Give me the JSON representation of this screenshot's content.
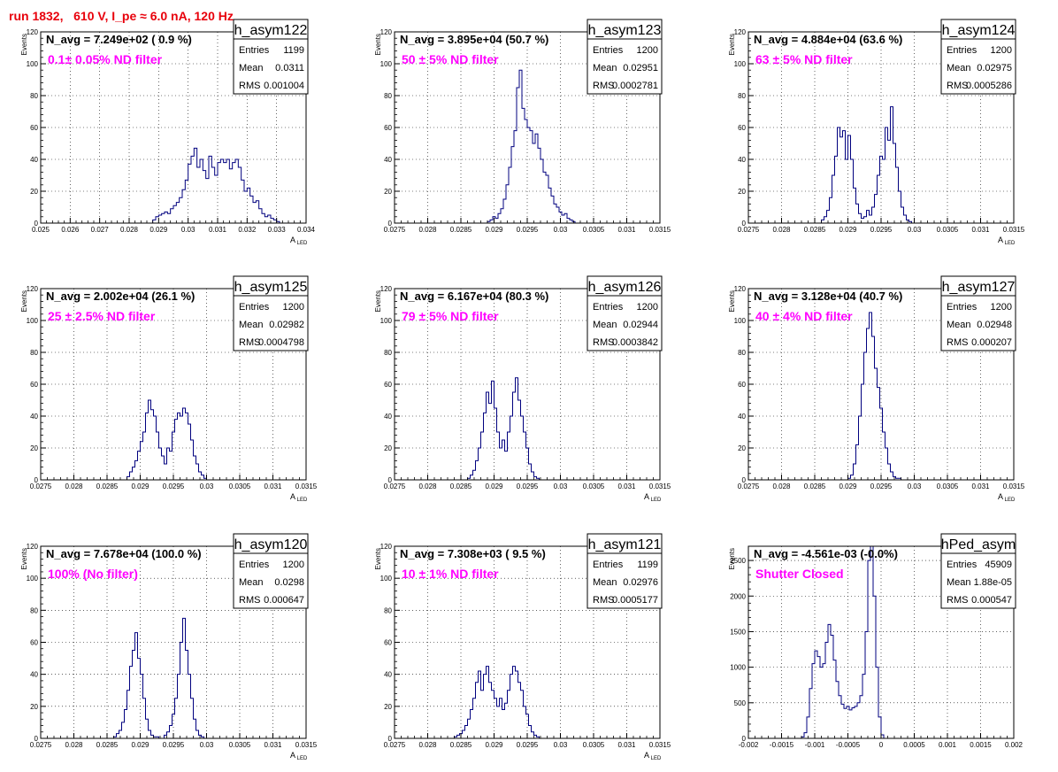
{
  "title": "run 1832,   610 V, I_pe ≈ 6.0 nA, 120 Hz",
  "stat_labels": {
    "entries": "Entries",
    "mean": "Mean",
    "rms": "RMS"
  },
  "y_label": "Events",
  "x_label_main": "A",
  "x_label_sub": "LED",
  "colors": {
    "histogram": "#00007f",
    "annotation": "#ff00ff",
    "title": "#e8000b"
  },
  "chart_data": [
    {
      "type": "bar",
      "name": "h_asym122",
      "nlabel": "N_avg = 7.249e+02 ( 0.9 %)",
      "filter_label": "0.1± 0.05% ND filter",
      "entries": "1199",
      "mean": "0.0311",
      "rms": "0.001004",
      "xlim": [
        0.025,
        0.034
      ],
      "ylim": [
        0,
        120
      ],
      "x_ticks": [
        0.025,
        0.026,
        0.027,
        0.028,
        0.029,
        0.03,
        0.031,
        0.032,
        0.033,
        0.034
      ],
      "x_tick_labels": [
        "0.025",
        "0.026",
        "0.027",
        "0.028",
        "0.029",
        "0.03",
        "0.031",
        "0.032",
        "0.033",
        "0.034"
      ],
      "y_ticks": [
        0,
        20,
        40,
        60,
        80,
        100,
        120
      ],
      "y_tick_labels": [
        "0",
        "20",
        "40",
        "60",
        "80",
        "100",
        "120"
      ],
      "x_axis_label": true,
      "bins": {
        "start": 0.0288,
        "width": 0.0001,
        "values": [
          2,
          4,
          5,
          6,
          7,
          6,
          9,
          11,
          13,
          16,
          21,
          27,
          37,
          42,
          47,
          35,
          40,
          33,
          28,
          42,
          35,
          30,
          38,
          40,
          38,
          40,
          34,
          38,
          40,
          35,
          27,
          20,
          22,
          17,
          13,
          14,
          9,
          6,
          4,
          5,
          3,
          2,
          1
        ]
      }
    },
    {
      "type": "bar",
      "name": "h_asym123",
      "nlabel": "N_avg = 3.895e+04 (50.7 %)",
      "filter_label": "50 ± 5% ND filter",
      "entries": "1200",
      "mean": "0.02951",
      "rms": "0.0002781",
      "xlim": [
        0.0275,
        0.0315
      ],
      "ylim": [
        0,
        120
      ],
      "x_ticks": [
        0.0275,
        0.028,
        0.0285,
        0.029,
        0.0295,
        0.03,
        0.0305,
        0.031,
        0.0315
      ],
      "x_tick_labels": [
        "0.0275",
        "0.028",
        "0.0285",
        "0.029",
        "0.0295",
        "0.03",
        "0.0305",
        "0.031",
        "0.0315"
      ],
      "y_ticks": [
        0,
        20,
        40,
        60,
        80,
        100,
        120
      ],
      "y_tick_labels": [
        "0",
        "20",
        "40",
        "60",
        "80",
        "100",
        "120"
      ],
      "x_axis_label": false,
      "bins": {
        "start": 0.0289,
        "width": 4e-05,
        "values": [
          1,
          2,
          4,
          3,
          6,
          9,
          15,
          24,
          35,
          48,
          58,
          85,
          96,
          72,
          65,
          60,
          58,
          50,
          56,
          47,
          40,
          32,
          30,
          22,
          17,
          12,
          10,
          7,
          5,
          6,
          3,
          2,
          1
        ]
      }
    },
    {
      "type": "bar",
      "name": "h_asym124",
      "nlabel": "N_avg = 4.884e+04 (63.6 %)",
      "filter_label": "63 ± 5% ND filter",
      "entries": "1200",
      "mean": "0.02975",
      "rms": "0.0005286",
      "xlim": [
        0.0275,
        0.0315
      ],
      "ylim": [
        0,
        120
      ],
      "x_ticks": [
        0.0275,
        0.028,
        0.0285,
        0.029,
        0.0295,
        0.03,
        0.0305,
        0.031,
        0.0315
      ],
      "x_tick_labels": [
        "0.0275",
        "0.028",
        "0.0285",
        "0.029",
        "0.0295",
        "0.03",
        "0.0305",
        "0.031",
        "0.0315"
      ],
      "y_ticks": [
        0,
        20,
        40,
        60,
        80,
        100,
        120
      ],
      "y_tick_labels": [
        "0",
        "20",
        "40",
        "60",
        "80",
        "100",
        "120"
      ],
      "x_axis_label": true,
      "bins": {
        "start": 0.0286,
        "width": 4e-05,
        "values": [
          2,
          4,
          8,
          16,
          30,
          42,
          60,
          54,
          58,
          40,
          55,
          40,
          22,
          12,
          6,
          3,
          4,
          8,
          5,
          10,
          18,
          30,
          42,
          40,
          60,
          52,
          73,
          50,
          35,
          20,
          10,
          5,
          2,
          1
        ]
      }
    },
    {
      "type": "bar",
      "name": "h_asym125",
      "nlabel": "N_avg = 2.002e+04 (26.1 %)",
      "filter_label": "25 ± 2.5% ND filter",
      "entries": "1200",
      "mean": "0.02982",
      "rms": "0.0004798",
      "xlim": [
        0.0275,
        0.0315
      ],
      "ylim": [
        0,
        120
      ],
      "x_ticks": [
        0.0275,
        0.028,
        0.0285,
        0.029,
        0.0295,
        0.03,
        0.0305,
        0.031,
        0.0315
      ],
      "x_tick_labels": [
        "0.0275",
        "0.028",
        "0.0285",
        "0.029",
        "0.0295",
        "0.03",
        "0.0305",
        "0.031",
        "0.0315"
      ],
      "y_ticks": [
        0,
        20,
        40,
        60,
        80,
        100,
        120
      ],
      "y_tick_labels": [
        "0",
        "20",
        "40",
        "60",
        "80",
        "100",
        "120"
      ],
      "x_axis_label": true,
      "bins": {
        "start": 0.0288,
        "width": 4e-05,
        "values": [
          2,
          5,
          8,
          12,
          18,
          24,
          30,
          42,
          50,
          44,
          40,
          30,
          20,
          15,
          10,
          20,
          18,
          30,
          38,
          42,
          40,
          45,
          42,
          35,
          25,
          15,
          10,
          5,
          3,
          1
        ]
      }
    },
    {
      "type": "bar",
      "name": "h_asym126",
      "nlabel": "N_avg = 6.167e+04 (80.3 %)",
      "filter_label": "79 ± 5% ND filter",
      "entries": "1200",
      "mean": "0.02944",
      "rms": "0.0003842",
      "xlim": [
        0.0275,
        0.0315
      ],
      "ylim": [
        0,
        120
      ],
      "x_ticks": [
        0.0275,
        0.028,
        0.0285,
        0.029,
        0.0295,
        0.03,
        0.0305,
        0.031,
        0.0315
      ],
      "x_tick_labels": [
        "0.0275",
        "0.028",
        "0.0285",
        "0.029",
        "0.0295",
        "0.03",
        "0.0305",
        "0.031",
        "0.0315"
      ],
      "y_ticks": [
        0,
        20,
        40,
        60,
        80,
        100,
        120
      ],
      "y_tick_labels": [
        "0",
        "20",
        "40",
        "60",
        "80",
        "100",
        "120"
      ],
      "x_axis_label": true,
      "bins": {
        "start": 0.0286,
        "width": 4e-05,
        "values": [
          1,
          3,
          6,
          12,
          20,
          30,
          42,
          55,
          48,
          62,
          45,
          30,
          20,
          25,
          18,
          30,
          40,
          55,
          64,
          50,
          40,
          30,
          20,
          10,
          5,
          2,
          1
        ]
      }
    },
    {
      "type": "bar",
      "name": "h_asym127",
      "nlabel": "N_avg = 3.128e+04 (40.7 %)",
      "filter_label": "40 ± 4% ND filter",
      "entries": "1200",
      "mean": "0.02948",
      "rms": "0.000207",
      "xlim": [
        0.0275,
        0.0315
      ],
      "ylim": [
        0,
        120
      ],
      "x_ticks": [
        0.0275,
        0.028,
        0.0285,
        0.029,
        0.0295,
        0.03,
        0.0305,
        0.031,
        0.0315
      ],
      "x_tick_labels": [
        "0.0275",
        "0.028",
        "0.0285",
        "0.029",
        "0.0295",
        "0.03",
        "0.0305",
        "0.031",
        "0.0315"
      ],
      "y_ticks": [
        0,
        20,
        40,
        60,
        80,
        100,
        120
      ],
      "y_tick_labels": [
        "0",
        "20",
        "40",
        "60",
        "80",
        "100",
        "120"
      ],
      "x_axis_label": true,
      "bins": {
        "start": 0.029,
        "width": 4e-05,
        "values": [
          1,
          3,
          10,
          22,
          40,
          60,
          80,
          95,
          105,
          90,
          70,
          58,
          45,
          30,
          20,
          10,
          5,
          2,
          1,
          1
        ]
      }
    },
    {
      "type": "bar",
      "name": "h_asym120",
      "nlabel": "N_avg = 7.678e+04 (100.0 %)",
      "filter_label": "100% (No filter)",
      "entries": "1200",
      "mean": "0.0298",
      "rms": "0.000647",
      "xlim": [
        0.0275,
        0.0315
      ],
      "ylim": [
        0,
        120
      ],
      "x_ticks": [
        0.0275,
        0.028,
        0.0285,
        0.029,
        0.0295,
        0.03,
        0.0305,
        0.031,
        0.0315
      ],
      "x_tick_labels": [
        "0.0275",
        "0.028",
        "0.0285",
        "0.029",
        "0.0295",
        "0.03",
        "0.0305",
        "0.031",
        "0.0315"
      ],
      "y_ticks": [
        0,
        20,
        40,
        60,
        80,
        100,
        120
      ],
      "y_tick_labels": [
        "0",
        "20",
        "40",
        "60",
        "80",
        "100",
        "120"
      ],
      "x_axis_label": true,
      "bins": {
        "start": 0.0286,
        "width": 4e-05,
        "values": [
          1,
          3,
          5,
          10,
          18,
          30,
          45,
          55,
          66,
          50,
          40,
          25,
          12,
          5,
          2,
          1,
          1,
          0,
          0,
          2,
          4,
          8,
          15,
          25,
          40,
          60,
          75,
          55,
          40,
          25,
          12,
          5,
          2,
          1
        ]
      }
    },
    {
      "type": "bar",
      "name": "h_asym121",
      "nlabel": "N_avg = 7.308e+03 ( 9.5 %)",
      "filter_label": "10 ± 1% ND filter",
      "entries": "1199",
      "mean": "0.02976",
      "rms": "0.0005177",
      "xlim": [
        0.0275,
        0.0315
      ],
      "ylim": [
        0,
        120
      ],
      "x_ticks": [
        0.0275,
        0.028,
        0.0285,
        0.029,
        0.0295,
        0.03,
        0.0305,
        0.031,
        0.0315
      ],
      "x_tick_labels": [
        "0.0275",
        "0.028",
        "0.0285",
        "0.029",
        "0.0295",
        "0.03",
        "0.0305",
        "0.031",
        "0.0315"
      ],
      "y_ticks": [
        0,
        20,
        40,
        60,
        80,
        100,
        120
      ],
      "y_tick_labels": [
        "0",
        "20",
        "40",
        "60",
        "80",
        "100",
        "120"
      ],
      "x_axis_label": true,
      "bins": {
        "start": 0.0284,
        "width": 4e-05,
        "values": [
          1,
          2,
          3,
          5,
          8,
          12,
          18,
          25,
          35,
          42,
          30,
          40,
          45,
          35,
          30,
          25,
          20,
          25,
          18,
          22,
          30,
          40,
          45,
          42,
          35,
          30,
          20,
          15,
          8,
          4,
          2,
          1
        ]
      }
    },
    {
      "type": "bar",
      "name": "hPed_asym",
      "nlabel": "N_avg = -4.561e-03 (-0.0%)",
      "filter_label": "Shutter Closed",
      "entries": "45909",
      "mean": "1.88e-05",
      "rms": "0.000547",
      "xlim": [
        -0.002,
        0.002
      ],
      "ylim": [
        0,
        2700
      ],
      "x_ticks": [
        -0.002,
        -0.0015,
        -0.001,
        -0.0005,
        0,
        0.0005,
        0.001,
        0.0015,
        0.002
      ],
      "x_tick_labels": [
        "-0.002",
        "-0.0015",
        "-0.001",
        "-0.0005",
        "0",
        "0.0005",
        "0.001",
        "0.0015",
        "0.002"
      ],
      "y_ticks": [
        0,
        500,
        1000,
        1500,
        2000,
        2500
      ],
      "y_tick_labels": [
        "0",
        "500",
        "1000",
        "1500",
        "2000",
        "2500"
      ],
      "x_axis_label": false,
      "bins": {
        "start": -0.0012,
        "width": 4e-05,
        "values": [
          20,
          80,
          300,
          700,
          1050,
          1230,
          1150,
          1000,
          1050,
          1350,
          1600,
          1450,
          1100,
          800,
          600,
          480,
          420,
          450,
          400,
          430,
          450,
          500,
          600,
          900,
          1500,
          2500,
          2700,
          2000,
          1000,
          300,
          50
        ]
      }
    }
  ]
}
